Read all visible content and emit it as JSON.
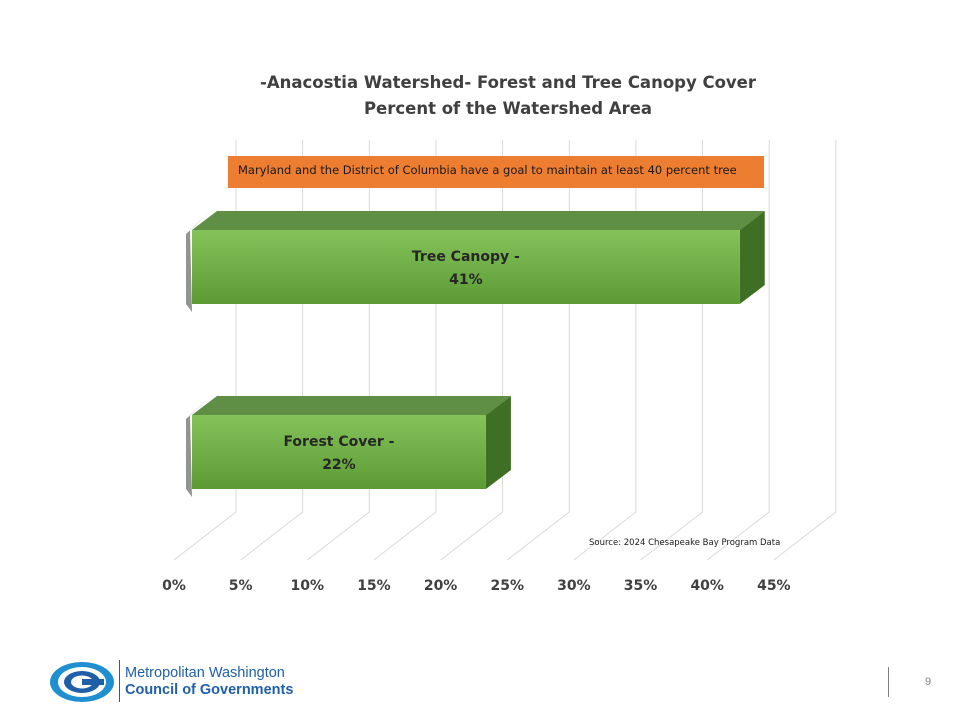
{
  "chart_data": {
    "type": "bar",
    "orientation": "horizontal",
    "title": "-Anacostia Watershed- Forest and Tree Canopy Cover",
    "subtitle": "Percent of the Watershed Area",
    "categories": [
      "Tree Canopy -",
      "Forest Cover -"
    ],
    "values": [
      41,
      22
    ],
    "data_labels": [
      "41%",
      "22%"
    ],
    "xlim": [
      0,
      45
    ],
    "x_ticks": [
      0,
      5,
      10,
      15,
      20,
      25,
      30,
      35,
      40,
      45
    ],
    "x_tick_labels": [
      "0%",
      "5%",
      "10%",
      "15%",
      "20%",
      "25%",
      "30%",
      "35%",
      "40%",
      "45%"
    ],
    "grid": true,
    "style": "3d",
    "bar_color": "#70ad47",
    "annotation": "Maryland and the District of Columbia have a goal to maintain at least 40 percent tree",
    "source": "Source: 2024 Chesapeake Bay Program Data"
  },
  "colors": {
    "annotation_bg": "#ed7d31",
    "bar_front": "#70ad47",
    "brand_blue": "#1f5fa8"
  },
  "footer": {
    "org_line1": "Metropolitan Washington",
    "org_line2": "Council of Governments",
    "page_number": "9"
  }
}
